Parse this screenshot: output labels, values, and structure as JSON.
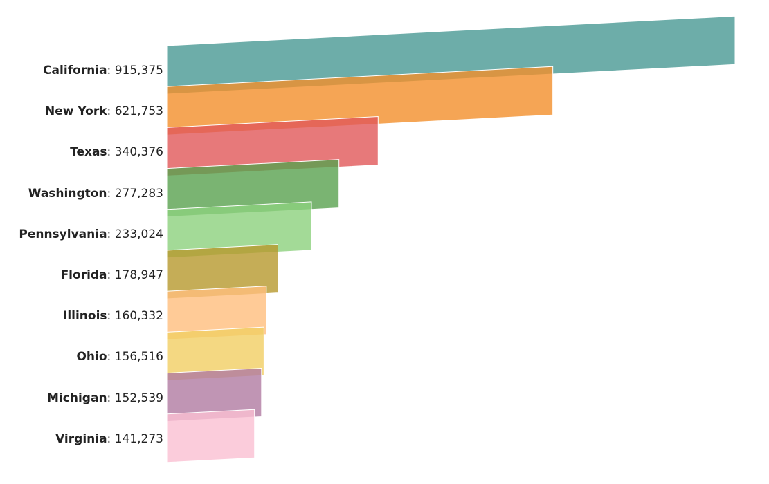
{
  "chart_data": {
    "type": "bar",
    "orientation": "horizontal",
    "title": "",
    "xlabel": "",
    "ylabel": "",
    "categories": [
      "California",
      "New York",
      "Texas",
      "Washington",
      "Pennsylvania",
      "Florida",
      "Illinois",
      "Ohio",
      "Michigan",
      "Virginia"
    ],
    "values": [
      915375,
      621753,
      340376,
      277283,
      233024,
      178947,
      160332,
      156516,
      152539,
      141273
    ],
    "value_labels": [
      "915,375",
      "621,753",
      "340,376",
      "277,283",
      "233,024",
      "178,947",
      "160,332",
      "156,516",
      "152,539",
      "141,273"
    ],
    "xlim": [
      0,
      915375
    ],
    "grid": false,
    "colors": [
      "#499894",
      "#f28e2b",
      "#e15759",
      "#59a14f",
      "#8cd17d",
      "#b6992d",
      "#ffbe7d",
      "#f1ce63",
      "#b07aa1",
      "#fabfd2"
    ]
  }
}
